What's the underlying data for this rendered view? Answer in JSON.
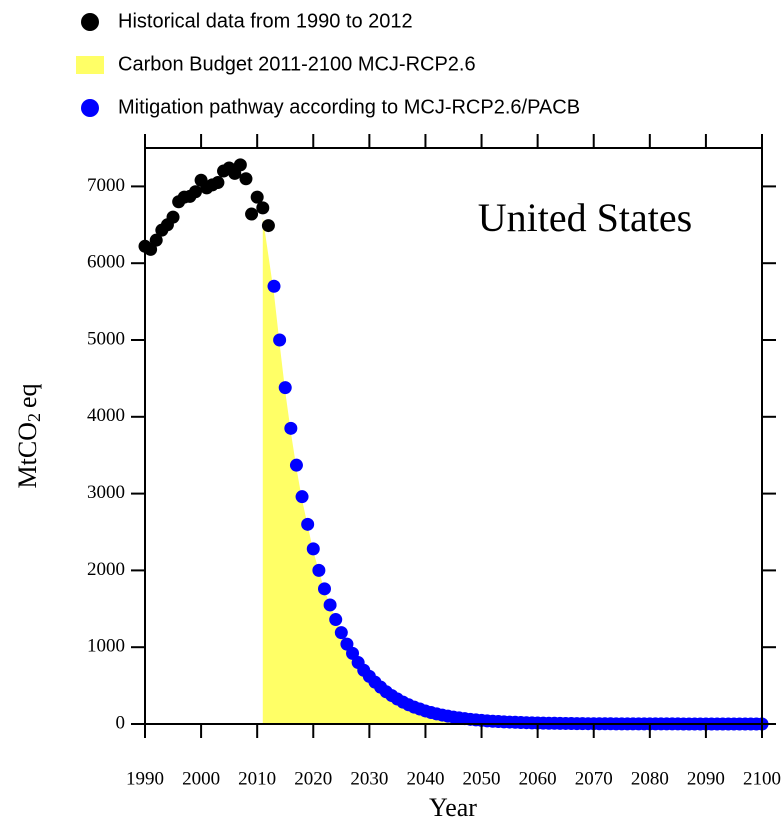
{
  "chart_data": {
    "type": "scatter",
    "annotation": "United States",
    "xlabel": "Year",
    "ylabel_parts": [
      "MtCO",
      "2",
      "eq"
    ],
    "xlim": [
      1990,
      2100
    ],
    "xticks": [
      1990,
      2000,
      2010,
      2020,
      2030,
      2040,
      2050,
      2060,
      2070,
      2080,
      2090,
      2100
    ],
    "ylim": [
      0,
      7500
    ],
    "yticks": [
      0,
      1000,
      2000,
      3000,
      4000,
      5000,
      6000,
      7000
    ],
    "series": [
      {
        "name": "Historical data from 1990 to 2012",
        "type": "scatter",
        "color": "#000000",
        "x": [
          1990,
          1991,
          1992,
          1993,
          1994,
          1995,
          1996,
          1997,
          1998,
          1999,
          2000,
          2001,
          2002,
          2003,
          2004,
          2005,
          2006,
          2007,
          2008,
          2009,
          2010,
          2011,
          2012
        ],
        "values": [
          6220,
          6180,
          6300,
          6430,
          6500,
          6600,
          6800,
          6860,
          6870,
          6930,
          7080,
          6980,
          7020,
          7050,
          7200,
          7240,
          7170,
          7280,
          7100,
          6640,
          6860,
          6720,
          6490
        ]
      },
      {
        "name": "Carbon Budget 2011-2100 MCJ-RCP2.6",
        "type": "area",
        "color": "#ffff66",
        "x": [
          2011,
          2012,
          2013,
          2014,
          2015,
          2016,
          2017,
          2018,
          2020,
          2022,
          2025,
          2030,
          2035,
          2040,
          2045,
          2050,
          2060,
          2100
        ],
        "values": [
          6600,
          6100,
          5600,
          4950,
          4330,
          3800,
          3330,
          2920,
          2250,
          1740,
          1180,
          610,
          320,
          165,
          88,
          46,
          12,
          0
        ]
      },
      {
        "name": "Mitigation pathway according to MCJ-RCP2.6/PACB",
        "type": "scatter",
        "color": "#0000ff",
        "x": [
          2013,
          2014,
          2015,
          2016,
          2017,
          2018,
          2019,
          2020,
          2021,
          2022,
          2023,
          2024,
          2025,
          2026,
          2027,
          2028,
          2029,
          2030,
          2031,
          2032,
          2033,
          2034,
          2035,
          2036,
          2037,
          2038,
          2039,
          2040,
          2041,
          2042,
          2043,
          2044,
          2045,
          2046,
          2047,
          2048,
          2049,
          2050,
          2051,
          2052,
          2053,
          2054,
          2055,
          2056,
          2057,
          2058,
          2059,
          2060,
          2061,
          2062,
          2063,
          2064,
          2065,
          2066,
          2067,
          2068,
          2069,
          2070,
          2071,
          2072,
          2073,
          2074,
          2075,
          2076,
          2077,
          2078,
          2079,
          2080,
          2081,
          2082,
          2083,
          2084,
          2085,
          2086,
          2087,
          2088,
          2089,
          2090,
          2091,
          2092,
          2093,
          2094,
          2095,
          2096,
          2097,
          2098,
          2099,
          2100
        ],
        "values": [
          5700,
          5000,
          4380,
          3850,
          3370,
          2960,
          2600,
          2280,
          2000,
          1760,
          1550,
          1360,
          1190,
          1040,
          920,
          800,
          700,
          620,
          545,
          480,
          420,
          370,
          325,
          285,
          250,
          220,
          195,
          170,
          150,
          132,
          116,
          102,
          90,
          79,
          70,
          61,
          54,
          47,
          41,
          36,
          32,
          28,
          25,
          22,
          19,
          17,
          15,
          13,
          11,
          10,
          9,
          8,
          7,
          6,
          5,
          5,
          4,
          4,
          3,
          3,
          3,
          2,
          2,
          2,
          2,
          1,
          1,
          1,
          1,
          1,
          1,
          1,
          1,
          0,
          0,
          0,
          0,
          0,
          0,
          0,
          0,
          0,
          0,
          0,
          0,
          0,
          0,
          0
        ]
      }
    ]
  }
}
